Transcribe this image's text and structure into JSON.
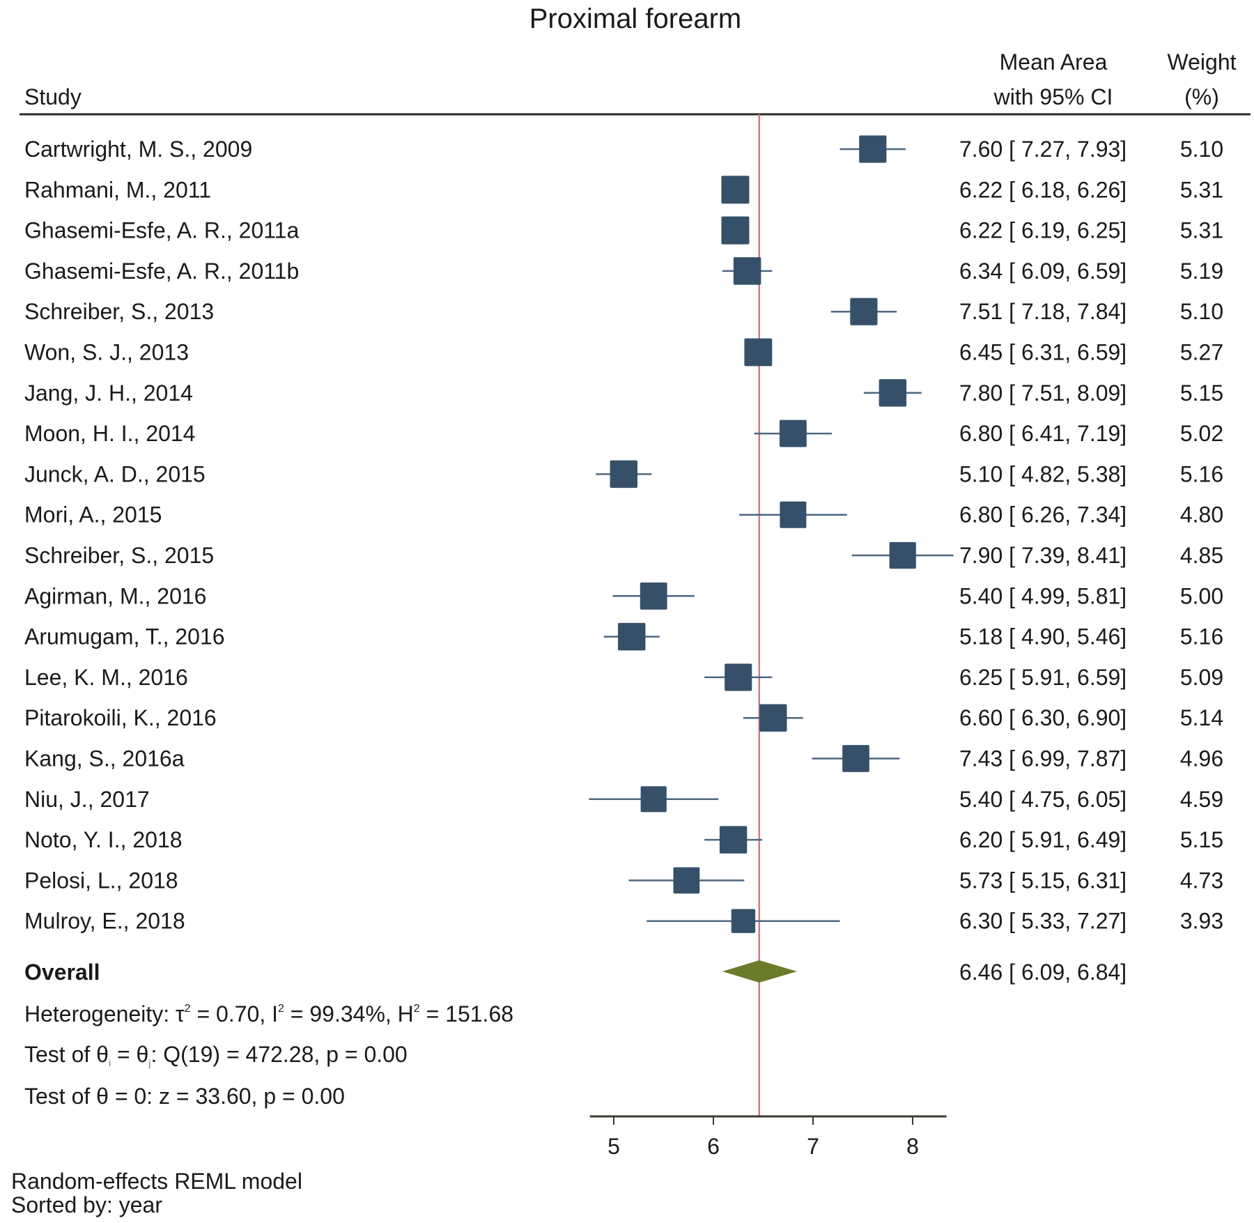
{
  "chart_data": {
    "type": "forest",
    "title": "Proximal forearm",
    "headers": {
      "study": "Study",
      "effect_line1": "Mean Area",
      "effect_line2": "with 95% CI",
      "weight_line1": "Weight",
      "weight_line2": "(%)"
    },
    "studies": [
      {
        "label": "Cartwright, M. S., 2009",
        "mean": 7.6,
        "lo": 7.27,
        "hi": 7.93,
        "ci_text": "7.60 [ 7.27,  7.93]",
        "weight": 5.1,
        "weight_text": "5.10"
      },
      {
        "label": "Rahmani, M., 2011",
        "mean": 6.22,
        "lo": 6.18,
        "hi": 6.26,
        "ci_text": "6.22 [ 6.18,  6.26]",
        "weight": 5.31,
        "weight_text": "5.31"
      },
      {
        "label": "Ghasemi-Esfe, A. R., 2011a",
        "mean": 6.22,
        "lo": 6.19,
        "hi": 6.25,
        "ci_text": "6.22 [ 6.19,  6.25]",
        "weight": 5.31,
        "weight_text": "5.31"
      },
      {
        "label": "Ghasemi-Esfe, A. R., 2011b",
        "mean": 6.34,
        "lo": 6.09,
        "hi": 6.59,
        "ci_text": "6.34 [ 6.09,  6.59]",
        "weight": 5.19,
        "weight_text": "5.19"
      },
      {
        "label": "Schreiber, S., 2013",
        "mean": 7.51,
        "lo": 7.18,
        "hi": 7.84,
        "ci_text": "7.51 [ 7.18,  7.84]",
        "weight": 5.1,
        "weight_text": "5.10"
      },
      {
        "label": "Won, S. J., 2013",
        "mean": 6.45,
        "lo": 6.31,
        "hi": 6.59,
        "ci_text": "6.45 [ 6.31,  6.59]",
        "weight": 5.27,
        "weight_text": "5.27"
      },
      {
        "label": "Jang, J. H., 2014",
        "mean": 7.8,
        "lo": 7.51,
        "hi": 8.09,
        "ci_text": "7.80 [ 7.51,  8.09]",
        "weight": 5.15,
        "weight_text": "5.15"
      },
      {
        "label": "Moon, H. I., 2014",
        "mean": 6.8,
        "lo": 6.41,
        "hi": 7.19,
        "ci_text": "6.80 [ 6.41,  7.19]",
        "weight": 5.02,
        "weight_text": "5.02"
      },
      {
        "label": "Junck, A. D., 2015",
        "mean": 5.1,
        "lo": 4.82,
        "hi": 5.38,
        "ci_text": "5.10 [ 4.82,  5.38]",
        "weight": 5.16,
        "weight_text": "5.16"
      },
      {
        "label": "Mori, A., 2015",
        "mean": 6.8,
        "lo": 6.26,
        "hi": 7.34,
        "ci_text": "6.80 [ 6.26,  7.34]",
        "weight": 4.8,
        "weight_text": "4.80"
      },
      {
        "label": "Schreiber, S., 2015",
        "mean": 7.9,
        "lo": 7.39,
        "hi": 8.41,
        "ci_text": "7.90 [ 7.39,  8.41]",
        "weight": 4.85,
        "weight_text": "4.85"
      },
      {
        "label": "Agirman, M., 2016",
        "mean": 5.4,
        "lo": 4.99,
        "hi": 5.81,
        "ci_text": "5.40 [ 4.99,  5.81]",
        "weight": 5.0,
        "weight_text": "5.00"
      },
      {
        "label": "Arumugam, T., 2016",
        "mean": 5.18,
        "lo": 4.9,
        "hi": 5.46,
        "ci_text": "5.18 [ 4.90,  5.46]",
        "weight": 5.16,
        "weight_text": "5.16"
      },
      {
        "label": "Lee, K. M., 2016",
        "mean": 6.25,
        "lo": 5.91,
        "hi": 6.59,
        "ci_text": "6.25 [ 5.91,  6.59]",
        "weight": 5.09,
        "weight_text": "5.09"
      },
      {
        "label": "Pitarokoili, K., 2016",
        "mean": 6.6,
        "lo": 6.3,
        "hi": 6.9,
        "ci_text": "6.60 [ 6.30,  6.90]",
        "weight": 5.14,
        "weight_text": "5.14"
      },
      {
        "label": "Kang, S., 2016a",
        "mean": 7.43,
        "lo": 6.99,
        "hi": 7.87,
        "ci_text": "7.43 [ 6.99,  7.87]",
        "weight": 4.96,
        "weight_text": "4.96"
      },
      {
        "label": "Niu, J., 2017",
        "mean": 5.4,
        "lo": 4.75,
        "hi": 6.05,
        "ci_text": "5.40 [ 4.75,  6.05]",
        "weight": 4.59,
        "weight_text": "4.59"
      },
      {
        "label": "Noto, Y. I., 2018",
        "mean": 6.2,
        "lo": 5.91,
        "hi": 6.49,
        "ci_text": "6.20 [ 5.91,  6.49]",
        "weight": 5.15,
        "weight_text": "5.15"
      },
      {
        "label": "Pelosi, L., 2018",
        "mean": 5.73,
        "lo": 5.15,
        "hi": 6.31,
        "ci_text": "5.73 [ 5.15,  6.31]",
        "weight": 4.73,
        "weight_text": "4.73"
      },
      {
        "label": "Mulroy, E., 2018",
        "mean": 6.3,
        "lo": 5.33,
        "hi": 7.27,
        "ci_text": "6.30 [ 5.33,  7.27]",
        "weight": 3.93,
        "weight_text": "3.93"
      }
    ],
    "overall": {
      "label": "Overall",
      "mean": 6.46,
      "lo": 6.09,
      "hi": 6.84,
      "ci_text": "6.46 [ 6.09,  6.84]"
    },
    "stats": {
      "heterogeneity": {
        "prefix": "Heterogeneity: τ",
        "tau2": "0.70",
        "i2": "99.34%",
        "h2": "151.68"
      },
      "test_q": {
        "df": 19,
        "Q": "472.28",
        "p": "0.00"
      },
      "test_z": {
        "z": "33.60",
        "p": "0.00"
      }
    },
    "xaxis": {
      "ticks": [
        5,
        6,
        7,
        8
      ],
      "range": [
        4.76,
        8.34
      ],
      "xlabel": ""
    },
    "reference_line": 6.46,
    "footnotes": [
      "Random-effects REML model",
      "Sorted by: year"
    ],
    "colors": {
      "marker": "#36506a",
      "ci_line": "#4e6680",
      "diamond": "#6b7b2a",
      "ref_line": "#d47a86",
      "axis": "#3a3a32"
    }
  }
}
